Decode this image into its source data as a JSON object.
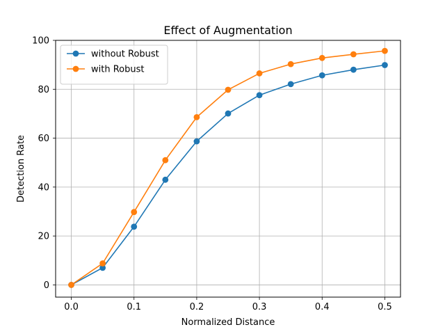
{
  "chart_data": {
    "type": "line",
    "title": "Effect of Augmentation",
    "xlabel": "Normalized Distance",
    "ylabel": "Detection Rate",
    "x": [
      0.0,
      0.05,
      0.1,
      0.15,
      0.2,
      0.25,
      0.3,
      0.35,
      0.4,
      0.45,
      0.5
    ],
    "xlim": [
      -0.025,
      0.525
    ],
    "ylim": [
      -5,
      100
    ],
    "xticks": [
      0.0,
      0.1,
      0.2,
      0.3,
      0.4,
      0.5
    ],
    "xtick_labels": [
      "0.0",
      "0.1",
      "0.2",
      "0.3",
      "0.4",
      "0.5"
    ],
    "yticks": [
      0,
      20,
      40,
      60,
      80,
      100
    ],
    "ytick_labels": [
      "0",
      "20",
      "40",
      "60",
      "80",
      "100"
    ],
    "grid": true,
    "legend_position": "top-left",
    "series": [
      {
        "name": "without Robust",
        "color": "#1f77b4",
        "marker": "circle",
        "values": [
          0,
          7,
          23.8,
          43,
          58.7,
          70.1,
          77.6,
          82.1,
          85.7,
          88.0,
          89.9
        ]
      },
      {
        "name": "with Robust",
        "color": "#ff7f0e",
        "marker": "circle",
        "values": [
          0,
          8.8,
          29.8,
          51.0,
          68.6,
          79.8,
          86.5,
          90.3,
          92.8,
          94.3,
          95.7
        ]
      }
    ]
  }
}
